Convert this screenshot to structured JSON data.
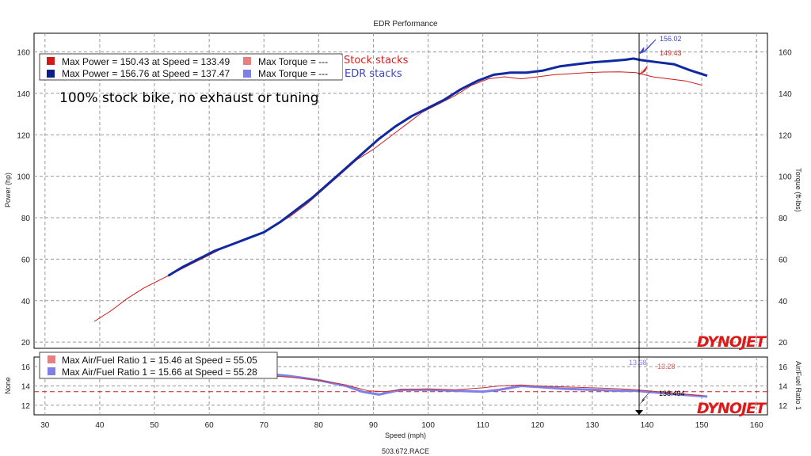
{
  "chart_data": [
    {
      "type": "line",
      "title": "EDR Performance",
      "xlabel": "Speed (mph)",
      "ylabel": "Power (hp)",
      "y2label": "Torque (ft-lbs)",
      "xlim": [
        28,
        162
      ],
      "ylim": [
        17,
        169
      ],
      "xticks": [
        30,
        40,
        50,
        60,
        70,
        80,
        90,
        100,
        110,
        120,
        130,
        140,
        150,
        160
      ],
      "yticks": [
        20,
        40,
        60,
        80,
        100,
        120,
        140,
        160
      ],
      "grid": true,
      "legend": [
        {
          "color": "#d11a1a",
          "text": "Max Power = 150.43 at Speed = 133.49"
        },
        {
          "color": "#0d1f8c",
          "text": "Max Power = 156.76 at Speed = 137.47"
        },
        {
          "color": "#e88080",
          "text": "Max Torque = ---"
        },
        {
          "color": "#7f7fe8",
          "text": "Max Torque = ---"
        }
      ],
      "annotations": [
        "100% stock bike, no exhaust or tuning"
      ],
      "labels": {
        "stock": "Stock stacks",
        "edr": "EDR stacks"
      },
      "cursor": {
        "x": 138.494,
        "values": [
          "156.02",
          "149.43"
        ]
      },
      "series": [
        {
          "name": "Stock stacks",
          "color": "#cc1a1a",
          "x": [
            39,
            42,
            45,
            48,
            51,
            54,
            57,
            60,
            63,
            66,
            69,
            72,
            75,
            78,
            81,
            84,
            87,
            90,
            93,
            96,
            99,
            102,
            105,
            108,
            111,
            114,
            117,
            120,
            123,
            126,
            129,
            132,
            135,
            138,
            141,
            144,
            147,
            150
          ],
          "y": [
            30,
            35,
            41,
            46,
            50,
            54,
            58,
            62,
            66,
            69,
            72,
            76,
            81,
            87,
            94,
            101,
            108,
            113,
            119,
            125,
            131,
            135,
            139,
            144,
            147,
            148,
            147,
            148,
            149,
            149.5,
            150,
            150.3,
            150.4,
            150,
            148,
            147,
            146,
            144
          ]
        },
        {
          "name": "EDR stacks",
          "color": "#1028a0",
          "x": [
            52.5,
            55,
            58,
            61,
            64,
            67,
            70,
            73,
            76,
            79,
            82,
            85,
            88,
            91,
            94,
            97,
            100,
            103,
            106,
            109,
            112,
            115,
            118,
            121,
            124,
            127,
            130,
            133,
            136,
            137.5,
            139,
            142,
            145,
            148,
            151
          ],
          "y": [
            52,
            56,
            60,
            64,
            67,
            70,
            73,
            78,
            84,
            90,
            97,
            104,
            111,
            118,
            124,
            129,
            133,
            137,
            142,
            146,
            149,
            150,
            150,
            151,
            153,
            154,
            155,
            155.5,
            156.2,
            156.76,
            156,
            155,
            154,
            151,
            148.5
          ]
        }
      ]
    },
    {
      "type": "line",
      "ylabel": "None",
      "y2label": "Air/Fuel Ratio 1",
      "xlim": [
        28,
        162
      ],
      "ylim": [
        11,
        17
      ],
      "yticks": [
        12,
        14,
        16
      ],
      "reference_line": 13.4,
      "legend": [
        {
          "color": "#e88080",
          "text": "Max Air/Fuel Ratio 1 = 15.46 at Speed = 55.05"
        },
        {
          "color": "#7f7fe8",
          "text": "Max Air/Fuel Ratio 1 = 15.66 at Speed = 55.28"
        }
      ],
      "cursor": {
        "x": 138.494,
        "label": "138.494",
        "values": [
          "13.68",
          "13.28"
        ]
      },
      "series": [
        {
          "name": "Stock stacks",
          "color": "#cc3030",
          "x": [
            55,
            60,
            65,
            70,
            75,
            80,
            85,
            89,
            92,
            95,
            100,
            105,
            110,
            113,
            117,
            120,
            125,
            130,
            135,
            138,
            142,
            146,
            150
          ],
          "y": [
            15.4,
            15.3,
            15.2,
            15.1,
            14.9,
            14.6,
            14.1,
            13.5,
            13.4,
            13.6,
            13.7,
            13.6,
            13.8,
            14.0,
            14.1,
            14.0,
            13.9,
            13.8,
            13.7,
            13.6,
            13.4,
            13.2,
            13.0
          ]
        },
        {
          "name": "EDR stacks",
          "color": "#7f7fe8",
          "x": [
            55,
            60,
            65,
            70,
            75,
            80,
            85,
            88,
            91,
            95,
            100,
            105,
            110,
            113,
            117,
            120,
            125,
            130,
            135,
            138,
            142,
            146,
            151
          ],
          "y": [
            15.6,
            15.5,
            15.4,
            15.3,
            15.0,
            14.6,
            14.0,
            13.4,
            13.1,
            13.6,
            13.6,
            13.5,
            13.4,
            13.6,
            14.0,
            13.9,
            13.7,
            13.6,
            13.5,
            13.5,
            13.3,
            13.1,
            12.9
          ]
        }
      ]
    }
  ],
  "logo_text": "DYNOJET",
  "footer": "503.672.RACE"
}
